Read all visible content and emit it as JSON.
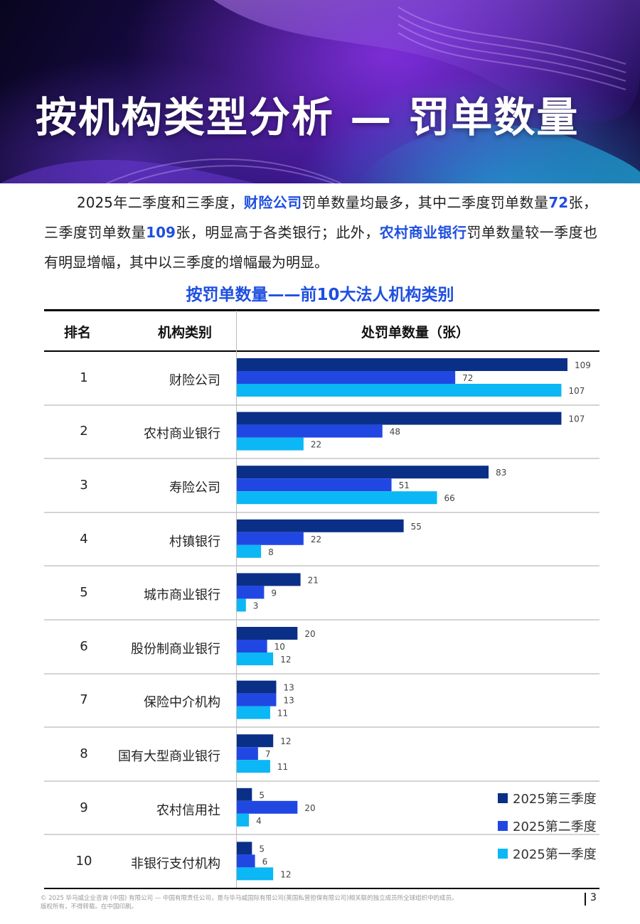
{
  "header": {
    "title": "按机构类型分析 — 罚单数量"
  },
  "intro": {
    "t1": "2025年二季度和三季度，",
    "h1": "财险公司",
    "t2": "罚单数量均最多，其中二季度罚单数量",
    "h2": "72",
    "t3": "张，三季度罚单数量",
    "h3": "109",
    "t4": "张，明显高于各类银行；此外，",
    "h4": "农村商业银行",
    "t5": "罚单数量较一季度也有明显增幅，其中以三季度的增幅最为明显。"
  },
  "table": {
    "title": "按罚单数量——前10大法人机构类别",
    "col_rank": "排名",
    "col_type": "机构类别",
    "col_count": "处罚单数量（张）"
  },
  "chart_data": {
    "type": "bar",
    "orientation": "horizontal",
    "categories": [
      "财险公司",
      "农村商业银行",
      "寿险公司",
      "村镇银行",
      "城市商业银行",
      "股份制商业银行",
      "保险中介机构",
      "国有大型商业银行",
      "农村信用社",
      "非银行支付机构"
    ],
    "ranks": [
      "1",
      "2",
      "3",
      "4",
      "5",
      "6",
      "7",
      "8",
      "9",
      "10"
    ],
    "series": [
      {
        "name": "2025第三季度",
        "color": "#0a2f87",
        "values": [
          109,
          107,
          83,
          55,
          21,
          20,
          13,
          12,
          5,
          5
        ]
      },
      {
        "name": "2025第二季度",
        "color": "#2147e3",
        "values": [
          72,
          48,
          51,
          22,
          9,
          10,
          13,
          7,
          20,
          6
        ]
      },
      {
        "name": "2025第一季度",
        "color": "#0bb7f4",
        "values": [
          107,
          22,
          66,
          8,
          3,
          12,
          11,
          11,
          4,
          12
        ]
      }
    ],
    "legend_position": "bottom-right",
    "data_labels": true
  },
  "footer": {
    "line1": "© 2025 毕马威企业咨询 (中国) 有限公司 — 中国有限责任公司，是与毕马威国际有限公司(英国私营担保有限公司)相关联的独立成员所全球组织中的成员。",
    "line2": "版权所有，不得转载。在中国印刷。",
    "page": "3"
  }
}
